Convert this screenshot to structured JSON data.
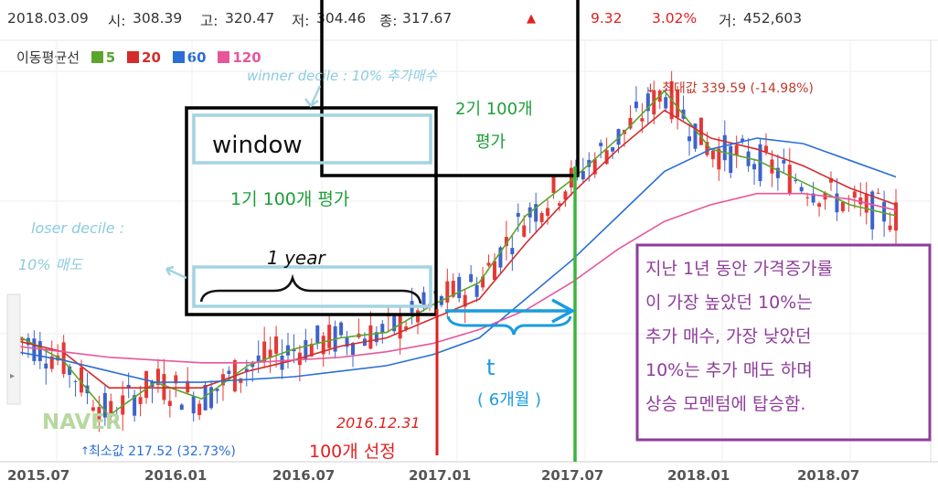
{
  "info_bar": {
    "date": "2018.03.09",
    "open_label": "시:",
    "open": "308.39",
    "high_label": "고:",
    "high": "320.47",
    "low_label": "저:",
    "low": "304.46",
    "close_label": "종:",
    "close": "317.67",
    "change_arrow": "▲",
    "change": "9.32",
    "change_pct": "3.02%",
    "volume_label": "거:",
    "volume": "452,603"
  },
  "legend": {
    "title": "이동평균선",
    "items": [
      {
        "label": "5",
        "color": "#5ba52e"
      },
      {
        "label": "20",
        "color": "#d42c2c"
      },
      {
        "label": "60",
        "color": "#2a6fd6"
      },
      {
        "label": "120",
        "color": "#e8569a"
      }
    ]
  },
  "chart_data": {
    "type": "line",
    "title": "",
    "xlabel": "",
    "ylabel": "",
    "x_ticks": [
      "2015.07",
      "2016.01",
      "2016.07",
      "2017.01",
      "2017.07",
      "2018.01",
      "2018.07"
    ],
    "max_label": "최대값 339.59 (-14.98%)",
    "min_label": "최소값 217.52 (32.73%)",
    "ylim": [
      205,
      350
    ],
    "x": [
      "2015.07",
      "2015.09",
      "2015.11",
      "2016.01",
      "2016.03",
      "2016.05",
      "2016.07",
      "2016.09",
      "2016.11",
      "2017.01",
      "2017.03",
      "2017.05",
      "2017.07",
      "2017.09",
      "2017.11",
      "2018.01",
      "2018.03",
      "2018.05",
      "2018.07",
      "2018.09"
    ],
    "series": [
      {
        "name": "5",
        "color": "#5ba52e",
        "values": [
          249,
          240,
          220,
          232,
          226,
          238,
          244,
          248,
          250,
          260,
          268,
          292,
          305,
          320,
          337,
          316,
          312,
          304,
          296,
          292
        ]
      },
      {
        "name": "20",
        "color": "#d42c2c",
        "values": [
          247,
          243,
          230,
          230,
          230,
          236,
          240,
          245,
          248,
          255,
          262,
          282,
          300,
          316,
          330,
          320,
          316,
          310,
          302,
          296
        ]
      },
      {
        "name": "60",
        "color": "#2a6fd6",
        "values": [
          243,
          240,
          236,
          232,
          232,
          233,
          234,
          236,
          238,
          242,
          248,
          262,
          276,
          292,
          308,
          316,
          320,
          318,
          312,
          306
        ]
      },
      {
        "name": "120",
        "color": "#e8569a",
        "values": [
          245,
          243,
          241,
          240,
          239,
          239,
          240,
          241,
          243,
          246,
          251,
          258,
          268,
          280,
          290,
          296,
          300,
          300,
          298,
          294
        ]
      }
    ],
    "watermark": "NAVER"
  },
  "annotations": {
    "winner": "winner decile : 10% 추가매수",
    "window": "window",
    "eval_1": "1기 100개 평가",
    "eval_2": "2기 100개\n평가",
    "loser": "loser decile :\n10% 매도",
    "one_year": "1 year",
    "t_label": "t",
    "six_months": "( 6개월 )",
    "date_red": "2016.12.31",
    "select_100": "100개 선정",
    "purple_note": "지난 1년 동안 가격증가률\n이 가장 높았던 10%는\n추가 매수, 가장 낮았던\n10%는 추가 매도 하며\n상승 모멘텀에 탑승함."
  }
}
